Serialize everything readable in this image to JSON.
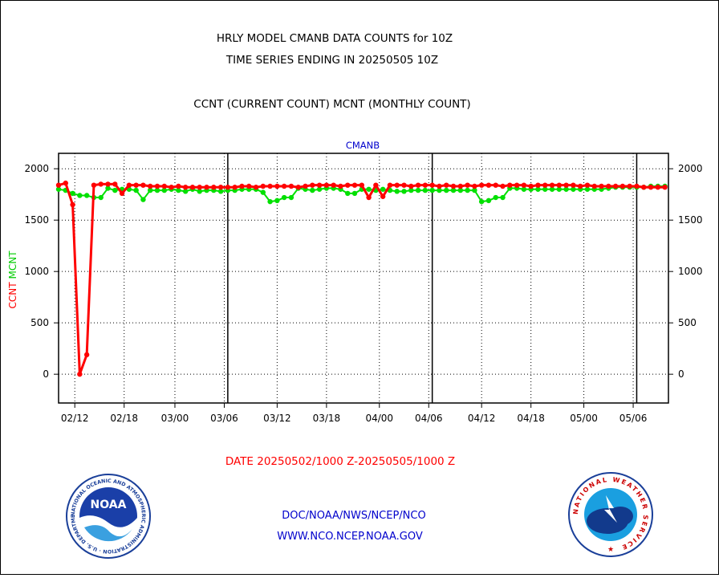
{
  "header": {
    "line1": "HRLY MODEL CMANB DATA COUNTS for 10Z",
    "line2": "TIME SERIES ENDING IN 20250505 10Z",
    "line3": "CCNT (CURRENT COUNT) MCNT (MONTHLY COUNT)"
  },
  "footer": {
    "date_range": "DATE 20250502/1000 Z-20250505/1000 Z",
    "org": "DOC/NOAA/NWS/NCEP/NCO",
    "url": "WWW.NCO.NCEP.NOAA.GOV"
  },
  "logos": {
    "left": {
      "center_text": "NOAA",
      "ring_text": "NATIONAL OCEANIC AND ATMOSPHERIC ADMINISTRATION · U.S. DEPARTMENT OF COMMERCE"
    },
    "right": {
      "ring_text": "NATIONAL WEATHER SERVICE"
    }
  },
  "colors": {
    "ccnt": "#ff0000",
    "mcnt": "#00e000",
    "text_blue": "#0000cc",
    "date_red": "#ff0000"
  },
  "chart_data": {
    "type": "line",
    "title": "CMANB",
    "ylabel_left": [
      "CCNT",
      "MCNT"
    ],
    "ylim": [
      -280,
      2150
    ],
    "yticks": [
      0,
      500,
      1000,
      1500,
      2000
    ],
    "xlim": [
      0,
      86.5
    ],
    "x_tick_labels": [
      {
        "pos": 2.3,
        "label": "02/12"
      },
      {
        "pos": 9.3,
        "label": "02/18"
      },
      {
        "pos": 16.5,
        "label": "03/00"
      },
      {
        "pos": 23.5,
        "label": "03/06"
      },
      {
        "pos": 31.0,
        "label": "03/12"
      },
      {
        "pos": 38.0,
        "label": "03/18"
      },
      {
        "pos": 45.5,
        "label": "04/00"
      },
      {
        "pos": 52.5,
        "label": "04/06"
      },
      {
        "pos": 60.0,
        "label": "04/12"
      },
      {
        "pos": 67.0,
        "label": "04/18"
      },
      {
        "pos": 74.5,
        "label": "05/00"
      },
      {
        "pos": 81.5,
        "label": "05/06"
      }
    ],
    "day_boundaries": [
      24,
      53,
      82
    ],
    "grid": true,
    "series": [
      {
        "name": "CCNT",
        "color": "#ff0000",
        "values": [
          1840,
          1860,
          1650,
          0,
          190,
          1840,
          1850,
          1850,
          1850,
          1760,
          1840,
          1840,
          1840,
          1830,
          1830,
          1830,
          1820,
          1830,
          1820,
          1820,
          1820,
          1820,
          1820,
          1820,
          1820,
          1820,
          1830,
          1830,
          1820,
          1830,
          1830,
          1830,
          1830,
          1830,
          1820,
          1830,
          1840,
          1840,
          1840,
          1840,
          1830,
          1840,
          1840,
          1840,
          1720,
          1840,
          1730,
          1840,
          1840,
          1840,
          1830,
          1840,
          1840,
          1840,
          1830,
          1840,
          1830,
          1830,
          1840,
          1830,
          1840,
          1840,
          1840,
          1830,
          1840,
          1840,
          1840,
          1830,
          1840,
          1840,
          1840,
          1840,
          1840,
          1840,
          1830,
          1840,
          1830,
          1830,
          1830,
          1830,
          1830,
          1830,
          1830,
          1820,
          1820,
          1820,
          1820
        ]
      },
      {
        "name": "MCNT",
        "color": "#00e000",
        "values": [
          1800,
          1790,
          1760,
          1740,
          1740,
          1720,
          1720,
          1810,
          1790,
          1800,
          1800,
          1790,
          1700,
          1790,
          1790,
          1790,
          1800,
          1790,
          1780,
          1800,
          1780,
          1790,
          1790,
          1780,
          1790,
          1790,
          1800,
          1800,
          1800,
          1770,
          1680,
          1690,
          1720,
          1720,
          1810,
          1800,
          1790,
          1800,
          1810,
          1810,
          1800,
          1760,
          1760,
          1800,
          1800,
          1790,
          1800,
          1790,
          1780,
          1780,
          1790,
          1790,
          1790,
          1790,
          1790,
          1790,
          1790,
          1790,
          1790,
          1790,
          1680,
          1690,
          1720,
          1720,
          1810,
          1810,
          1800,
          1800,
          1800,
          1800,
          1800,
          1800,
          1800,
          1800,
          1800,
          1800,
          1800,
          1800,
          1810,
          1820,
          1820,
          1820,
          1820,
          1820,
          1830,
          1830,
          1830
        ]
      }
    ]
  }
}
